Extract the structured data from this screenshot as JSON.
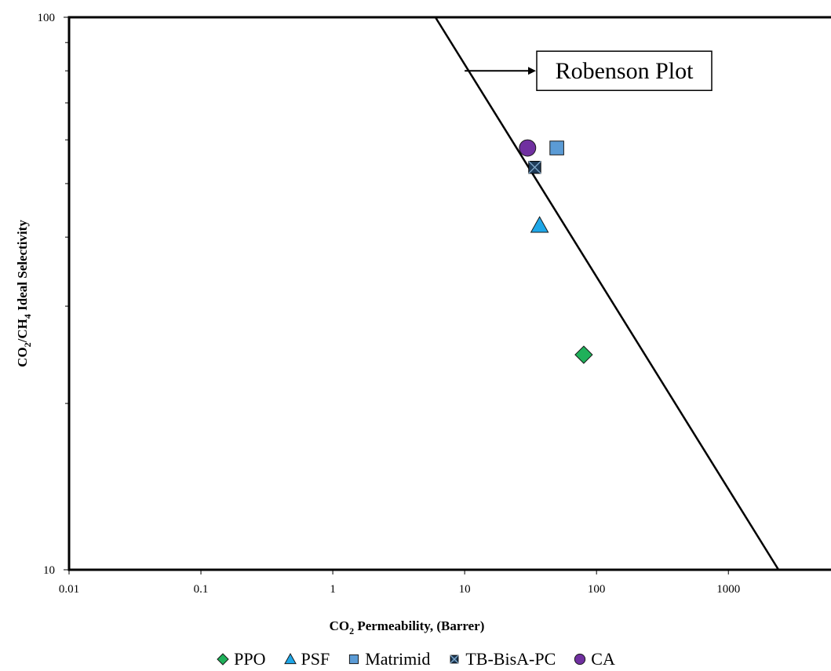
{
  "chart_data": {
    "type": "scatter",
    "xlabel": {
      "main": "CO",
      "sub": "2",
      "rest": " Permeability, (Barrer)"
    },
    "ylabel": {
      "p1": "CO",
      "s1": "2",
      "p2": "/CH",
      "s2": "4",
      "p3": " Ideal Selectivity"
    },
    "x_scale": "log",
    "y_scale": "log",
    "xlim": [
      0.01,
      6000
    ],
    "ylim": [
      10,
      100
    ],
    "x_ticks": [
      "0.01",
      "0.1",
      "1",
      "10",
      "100",
      "1000"
    ],
    "y_ticks": [
      "10",
      "100"
    ],
    "grid": false,
    "legend_position": "bottom",
    "series": [
      {
        "name": "PPO",
        "marker": "diamond",
        "color": "#1fb15a",
        "points": [
          {
            "x": 80,
            "y": 24.5
          }
        ]
      },
      {
        "name": "PSF",
        "marker": "triangle",
        "color": "#1ea7e8",
        "points": [
          {
            "x": 37,
            "y": 42
          }
        ]
      },
      {
        "name": "Matrimid",
        "marker": "square",
        "color": "#5b9bd5",
        "points": [
          {
            "x": 50,
            "y": 58
          }
        ]
      },
      {
        "name": "TB-BisA-PC",
        "marker": "square-x",
        "color": "#1f3c5a",
        "points": [
          {
            "x": 34,
            "y": 53.5
          }
        ]
      },
      {
        "name": "CA",
        "marker": "circle",
        "color": "#7030a0",
        "points": [
          {
            "x": 30,
            "y": 58
          }
        ]
      }
    ],
    "upper_bound_line": {
      "points": [
        {
          "x": 6,
          "y": 100
        },
        {
          "x": 2400,
          "y": 10
        }
      ]
    },
    "annotation": {
      "text": "Robenson Plot",
      "arrow_to": {
        "x": 10,
        "y": 80
      }
    }
  }
}
